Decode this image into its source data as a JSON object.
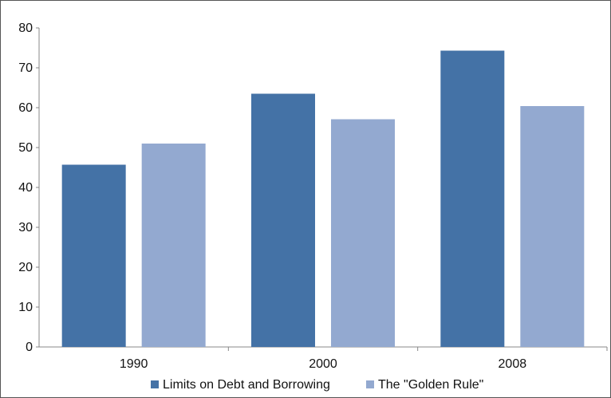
{
  "chart_data": {
    "type": "bar",
    "categories": [
      "1990",
      "2000",
      "2008"
    ],
    "series": [
      {
        "name": "Limits on Debt and Borrowing",
        "values": [
          45.7,
          63.5,
          74.3
        ],
        "color": "#4472a6"
      },
      {
        "name": "The \"Golden Rule\"",
        "values": [
          51.0,
          57.1,
          60.4
        ],
        "color": "#93a9d0"
      }
    ],
    "ylim": [
      0,
      80
    ],
    "yticks": [
      "0",
      "10",
      "20",
      "30",
      "40",
      "50",
      "60",
      "70",
      "80"
    ],
    "title": "",
    "xlabel": "",
    "ylabel": "",
    "grid": false,
    "legend_position": "bottom-center"
  }
}
